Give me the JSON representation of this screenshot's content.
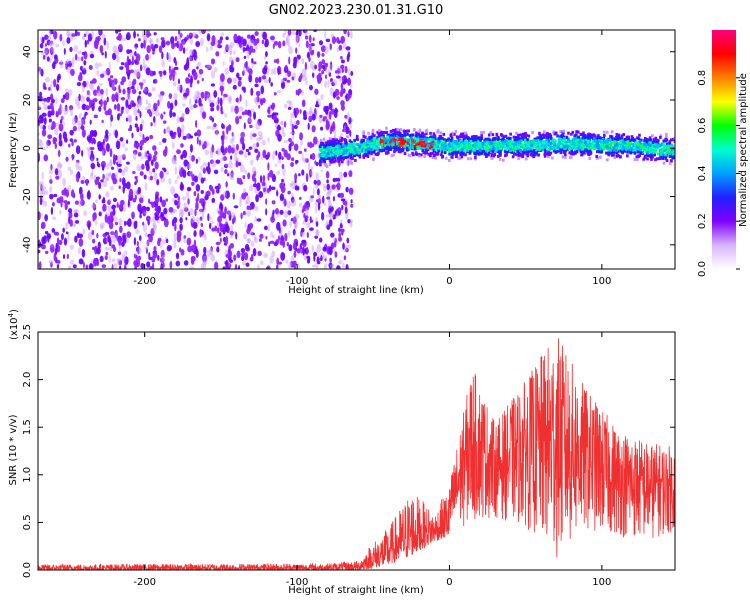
{
  "figure": {
    "title": "GN02.2023.230.01.31.G10"
  },
  "chart_data": [
    {
      "type": "heatmap",
      "xlabel": "Height of straight line (km)",
      "ylabel": "Frequency (Hz)",
      "xlim": [
        -270,
        148
      ],
      "ylim": [
        -50,
        49
      ],
      "xticks": [
        -200,
        -100,
        0,
        100
      ],
      "xtick_labels": [
        "-200",
        "-100",
        "0",
        "100"
      ],
      "yticks": [
        -40,
        -20,
        0,
        20,
        40
      ],
      "ytick_labels": [
        "-40",
        "-20",
        "0",
        "20",
        "40"
      ],
      "noise_region_x": [
        -270,
        -70
      ],
      "signal_band": {
        "x_start": -85,
        "x_end": 148,
        "center_hz": [
          {
            "x": -85,
            "y": -2
          },
          {
            "x": -60,
            "y": 0
          },
          {
            "x": -40,
            "y": 3
          },
          {
            "x": -20,
            "y": 2
          },
          {
            "x": 0,
            "y": 1
          },
          {
            "x": 40,
            "y": 1
          },
          {
            "x": 80,
            "y": 2
          },
          {
            "x": 120,
            "y": 1
          },
          {
            "x": 148,
            "y": -1
          }
        ],
        "half_width_hz": 5
      },
      "colorbar": {
        "label": "Normalized spectral amplitude",
        "range": [
          0.0,
          1.0
        ],
        "ticks": [
          0.0,
          0.2,
          0.4,
          0.6,
          0.8
        ],
        "tick_labels": [
          "0.0",
          "0.2",
          "0.4",
          "0.6",
          "0.8"
        ],
        "colors": [
          "#ffffff",
          "#d9b3ff",
          "#8000ff",
          "#2020ff",
          "#00a0ff",
          "#00ffcc",
          "#00ff00",
          "#ffff00",
          "#ff8000",
          "#ff0000",
          "#ff0080"
        ]
      },
      "grid": false
    },
    {
      "type": "line",
      "xlabel": "Height of straight line (km)",
      "ylabel": "SNR (10 * v/v)",
      "yscale_label": "(x10",
      "yscale_exp": "4",
      "yscale_suffix": ")",
      "xlim": [
        -270,
        148
      ],
      "ylim": [
        0,
        2.5
      ],
      "xticks": [
        -200,
        -100,
        0,
        100
      ],
      "xtick_labels": [
        "-200",
        "-100",
        "0",
        "100"
      ],
      "yticks": [
        0.0,
        0.5,
        1.0,
        1.5,
        2.0,
        2.5
      ],
      "ytick_labels": [
        "0.0",
        "0.5",
        "1.0",
        "1.5",
        "2.0",
        "2.5"
      ],
      "color": "#f03030",
      "envelope": [
        {
          "x": -270,
          "lo": 0.0,
          "hi": 0.06
        },
        {
          "x": -80,
          "lo": 0.0,
          "hi": 0.07
        },
        {
          "x": -60,
          "lo": 0.0,
          "hi": 0.1
        },
        {
          "x": -50,
          "lo": 0.02,
          "hi": 0.3
        },
        {
          "x": -40,
          "lo": 0.05,
          "hi": 0.45
        },
        {
          "x": -25,
          "lo": 0.15,
          "hi": 0.85
        },
        {
          "x": -10,
          "lo": 0.3,
          "hi": 0.6
        },
        {
          "x": 0,
          "lo": 0.35,
          "hi": 0.9
        },
        {
          "x": 15,
          "lo": 0.5,
          "hi": 2.15
        },
        {
          "x": 30,
          "lo": 0.55,
          "hi": 1.55
        },
        {
          "x": 50,
          "lo": 0.45,
          "hi": 2.0
        },
        {
          "x": 70,
          "lo": 0.1,
          "hi": 2.5
        },
        {
          "x": 90,
          "lo": 0.4,
          "hi": 1.9
        },
        {
          "x": 110,
          "lo": 0.35,
          "hi": 1.5
        },
        {
          "x": 130,
          "lo": 0.3,
          "hi": 1.35
        },
        {
          "x": 148,
          "lo": 0.4,
          "hi": 1.3
        }
      ],
      "grid": false
    }
  ]
}
